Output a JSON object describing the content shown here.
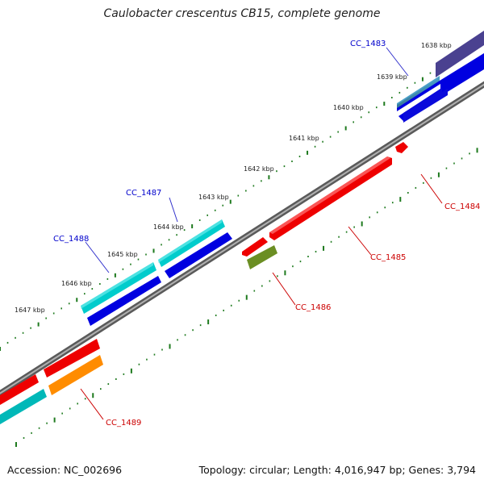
{
  "title": "Caulobacter crescentus CB15, complete genome",
  "footer": {
    "accession": "Accession: NC_002696",
    "summary": "Topology: circular; Length: 4,016,947 bp; Genes: 3,794"
  },
  "colors": {
    "backbone": "#8a8a8a",
    "ticks": "#1e7a1e",
    "forward_label": "#0000cc",
    "reverse_label": "#cc0000"
  },
  "kbp_labels": [
    "1638 kbp",
    "1639 kbp",
    "1640 kbp",
    "1641 kbp",
    "1642 kbp",
    "1643 kbp",
    "1644 kbp",
    "1645 kbp",
    "1646 kbp",
    "1647 kbp"
  ],
  "genes": [
    {
      "name": "CC_1483",
      "strand": "forward",
      "color": "#1a1a9e"
    },
    {
      "name": "CC_1484",
      "strand": "reverse",
      "color": "#ff0000"
    },
    {
      "name": "CC_1485",
      "strand": "reverse",
      "color": "#ff0000"
    },
    {
      "name": "CC_1486",
      "strand": "reverse",
      "color": "#6b8e23"
    },
    {
      "name": "CC_1487",
      "strand": "forward",
      "color": "#00c8c8"
    },
    {
      "name": "CC_1488",
      "strand": "forward",
      "color": "#00c8c8"
    },
    {
      "name": "CC_1489",
      "strand": "reverse",
      "color": "#ff8c00"
    }
  ]
}
